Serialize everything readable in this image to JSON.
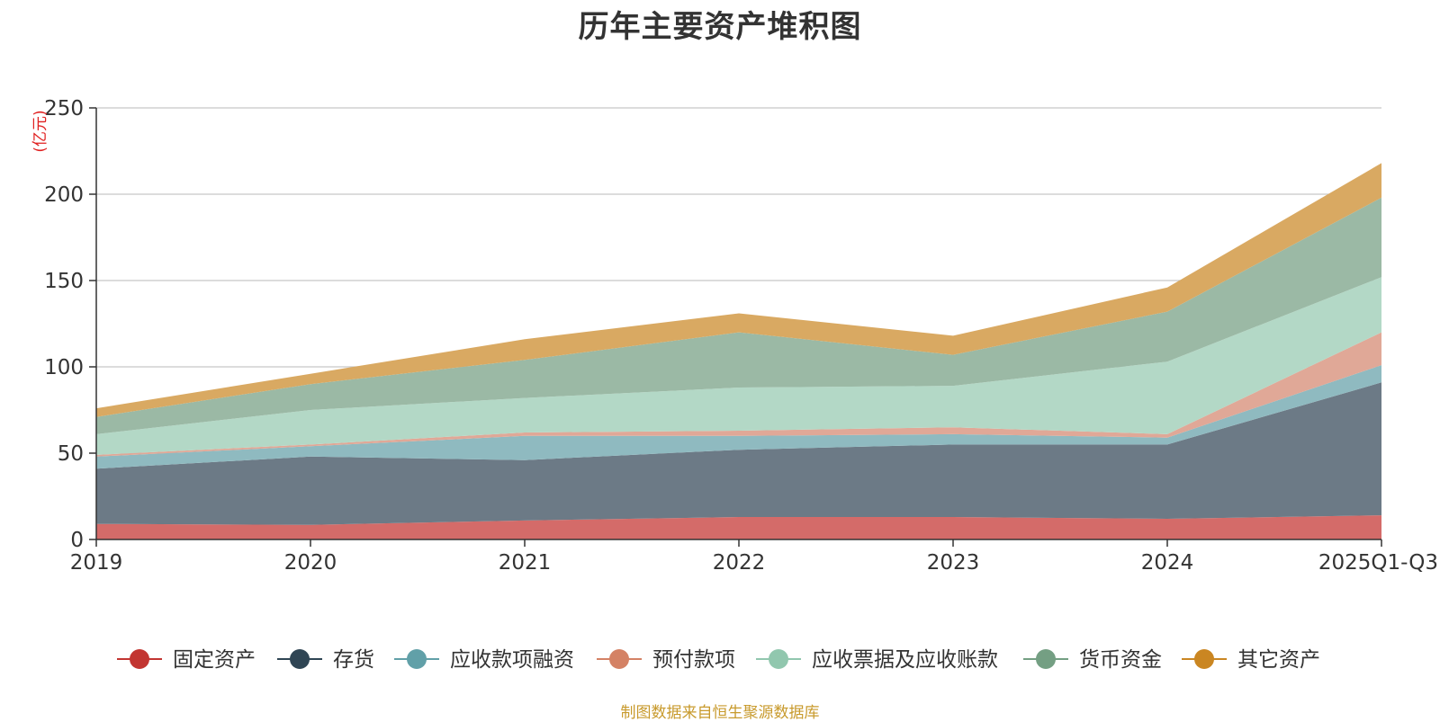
{
  "chart_data": {
    "type": "area",
    "stacked": true,
    "title": "历年主要资产堆积图",
    "ylabel": "(亿元)",
    "xlabel": "",
    "ylim": [
      0,
      250
    ],
    "yticks": [
      0,
      50,
      100,
      150,
      200,
      250
    ],
    "grid": true,
    "legend_position": "bottom",
    "categories": [
      "2019",
      "2020",
      "2021",
      "2022",
      "2023",
      "2024",
      "2025Q1-Q3"
    ],
    "series": [
      {
        "name": "固定资产",
        "color": "#c23531",
        "fill": "#d46b69",
        "values": [
          9,
          8.5,
          11,
          13,
          13,
          12,
          14
        ]
      },
      {
        "name": "存货",
        "color": "#2f4554",
        "fill": "#6c7a86",
        "values": [
          32,
          39.5,
          35,
          39,
          42,
          43,
          77
        ]
      },
      {
        "name": "应收款项融资",
        "color": "#61a0a8",
        "fill": "#8fbac0",
        "values": [
          7,
          6,
          14,
          8,
          6,
          4,
          10
        ]
      },
      {
        "name": "预付款项",
        "color": "#d48265",
        "fill": "#e0a897",
        "values": [
          1,
          1,
          2,
          3,
          4,
          2,
          19
        ]
      },
      {
        "name": "应收票据及应收账款",
        "color": "#91c7ae",
        "fill": "#b3d8c6",
        "values": [
          12,
          20,
          20,
          25,
          24,
          42,
          32
        ]
      },
      {
        "name": "货币资金",
        "color": "#749f83",
        "fill": "#9bb9a5",
        "values": [
          10,
          15,
          22,
          32,
          18,
          29,
          46
        ]
      },
      {
        "name": "其它资产",
        "color": "#ca8622",
        "fill": "#d9a962",
        "values": [
          5,
          6,
          12,
          11,
          11,
          14,
          20
        ]
      }
    ],
    "source": "制图数据来自恒生聚源数据库"
  }
}
